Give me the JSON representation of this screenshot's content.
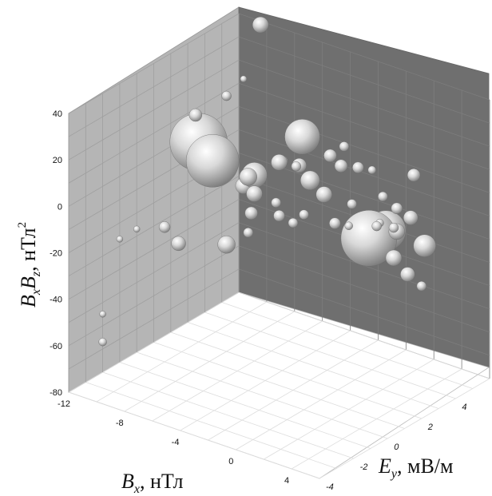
{
  "chart_data": {
    "type": "scatter",
    "subtype": "3d-bubble",
    "title": "",
    "zlabel": {
      "main": "B",
      "s1": "x",
      "main2": "B",
      "s2": "z",
      "unit": ", нТл",
      "sup": "2"
    },
    "xlabel": {
      "main": "B",
      "sub": "x",
      "unit": ", нТл"
    },
    "ylabel": {
      "main": "E",
      "sub": "y",
      "unit": ", мВ/м"
    },
    "z_ticks": [
      "40",
      "20",
      "0",
      "-20",
      "-40",
      "-60",
      "-80"
    ],
    "x_ticks": [
      "-12",
      "-8",
      "-4",
      "0",
      "4"
    ],
    "y_ticks": [
      "-4",
      "-2",
      "0",
      "2",
      "4"
    ],
    "z_range": [
      -80,
      40
    ],
    "x_range": [
      -12,
      6
    ],
    "y_range": [
      -4,
      6
    ],
    "grid": true,
    "colors": {
      "back_wall": "#6f6f6f",
      "side_wall": "#b5b5b5",
      "floor": "#ffffff",
      "bubble": "#c4c4c4"
    },
    "points": [
      {
        "x": -8,
        "y": 4,
        "z": 52,
        "r": 10
      },
      {
        "x": -9,
        "y": 1,
        "z": 24,
        "r": 8
      },
      {
        "x": -8,
        "y": 2,
        "z": 30,
        "r": 6
      },
      {
        "x": -8,
        "y": 3,
        "z": 33,
        "r": 4
      },
      {
        "x": -2,
        "y": 4,
        "z": 12,
        "r": 6
      },
      {
        "x": -3,
        "y": 1,
        "z": 16,
        "r": 10
      },
      {
        "x": -4,
        "y": 2,
        "z": 10,
        "r": 7
      },
      {
        "x": -3,
        "y": 2,
        "z": 10,
        "r": 6
      },
      {
        "x": -5,
        "y": 4,
        "z": 10,
        "r": 22
      },
      {
        "x": -6,
        "y": 2,
        "z": 0,
        "r": 16
      },
      {
        "x": -2,
        "y": 2,
        "z": 6,
        "r": 12
      },
      {
        "x": -4,
        "y": 0,
        "z": 12,
        "r": 11
      },
      {
        "x": -4,
        "y": 3,
        "z": 4,
        "r": 9
      },
      {
        "x": -3,
        "y": 4,
        "z": 6,
        "r": 8
      },
      {
        "x": -1,
        "y": 3,
        "z": 10,
        "r": 8
      },
      {
        "x": -1,
        "y": 2,
        "z": 2,
        "r": 10
      },
      {
        "x": -1,
        "y": 4,
        "z": 5,
        "r": 7
      },
      {
        "x": -2,
        "y": 0,
        "z": 5,
        "r": 6
      },
      {
        "x": 0,
        "y": 0,
        "z": 4,
        "r": 6
      },
      {
        "x": 0,
        "y": 4,
        "z": 6,
        "r": 5
      },
      {
        "x": 1,
        "y": 2,
        "z": 2,
        "r": 6
      },
      {
        "x": 1,
        "y": 1,
        "z": -2,
        "r": 7
      },
      {
        "x": 2,
        "y": 3,
        "z": 3,
        "r": 6
      },
      {
        "x": 2,
        "y": 1,
        "z": -1,
        "r": 5
      },
      {
        "x": 3,
        "y": 2,
        "z": -2,
        "r": 5
      },
      {
        "x": 3,
        "y": 4,
        "z": 10,
        "r": 8
      },
      {
        "x": 3,
        "y": 3,
        "z": 0,
        "r": 7
      },
      {
        "x": 4,
        "y": 2,
        "z": -2,
        "r": 6
      },
      {
        "x": 4,
        "y": 1,
        "z": 3,
        "r": 6
      },
      {
        "x": 4,
        "y": 3,
        "z": -2,
        "r": 9
      },
      {
        "x": -8,
        "y": 3,
        "z": -13,
        "r": 10
      },
      {
        "x": -9,
        "y": 2,
        "z": 0,
        "r": 33
      },
      {
        "x": -10,
        "y": 2,
        "z": 6,
        "r": 36
      },
      {
        "x": 1,
        "y": 4,
        "z": -18,
        "r": 25
      },
      {
        "x": 1,
        "y": 3,
        "z": -17,
        "r": 35
      },
      {
        "x": 3,
        "y": 3,
        "z": -10,
        "r": 10
      },
      {
        "x": 5,
        "y": 3,
        "z": -12,
        "r": 14
      },
      {
        "x": 4,
        "y": 2,
        "z": -15,
        "r": 10
      },
      {
        "x": 5,
        "y": 2,
        "z": -20,
        "r": 9
      },
      {
        "x": 6,
        "y": 2,
        "z": -23,
        "r": 6
      },
      {
        "x": -6,
        "y": 2,
        "z": -8,
        "r": 10
      },
      {
        "x": -5,
        "y": 1,
        "z": -10,
        "r": 8
      },
      {
        "x": -4,
        "y": 0,
        "z": -12,
        "r": 6
      },
      {
        "x": -3,
        "y": 1,
        "z": -7,
        "r": 7
      },
      {
        "x": -2,
        "y": 1,
        "z": -8,
        "r": 6
      },
      {
        "x": -10,
        "y": 0,
        "z": -22,
        "r": 7
      },
      {
        "x": -9,
        "y": 0,
        "z": -27,
        "r": 9
      },
      {
        "x": -8,
        "y": 2,
        "z": -34,
        "r": 11
      },
      {
        "x": -12,
        "y": 0,
        "z": -27,
        "r": 4
      },
      {
        "x": -12,
        "y": -1,
        "z": -27,
        "r": 4
      },
      {
        "x": -12,
        "y": -2,
        "z": -55,
        "r": 4
      },
      {
        "x": -12,
        "y": -2,
        "z": -67,
        "r": 5
      }
    ]
  }
}
